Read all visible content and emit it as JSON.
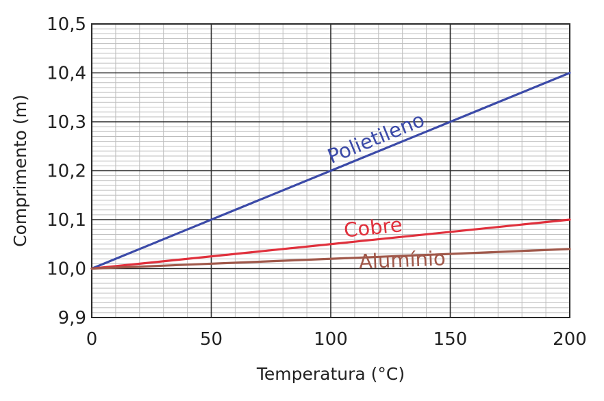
{
  "chart_data": {
    "type": "line",
    "xlabel": "Temperatura (°C)",
    "ylabel": "Comprimento (m)",
    "xlim": [
      0,
      200
    ],
    "ylim": [
      9.9,
      10.5
    ],
    "x_ticks": [
      0,
      50,
      100,
      150,
      200
    ],
    "x_tick_labels": [
      "0",
      "50",
      "100",
      "150",
      "200"
    ],
    "y_ticks": [
      9.9,
      10.0,
      10.1,
      10.2,
      10.3,
      10.4,
      10.5
    ],
    "y_tick_labels": [
      "9,9",
      "10,0",
      "10,1",
      "10,2",
      "10,3",
      "10,4",
      "10,5"
    ],
    "grid": true,
    "series": [
      {
        "name": "Polietileno",
        "x": [
          0,
          200
        ],
        "y": [
          10.0,
          10.4
        ],
        "color": "#3b4aa8"
      },
      {
        "name": "Cobre",
        "x": [
          0,
          200
        ],
        "y": [
          10.0,
          10.1
        ],
        "color": "#e0303c"
      },
      {
        "name": "Alumínio",
        "x": [
          0,
          200
        ],
        "y": [
          10.0,
          10.04
        ],
        "color": "#a0584a"
      }
    ]
  }
}
